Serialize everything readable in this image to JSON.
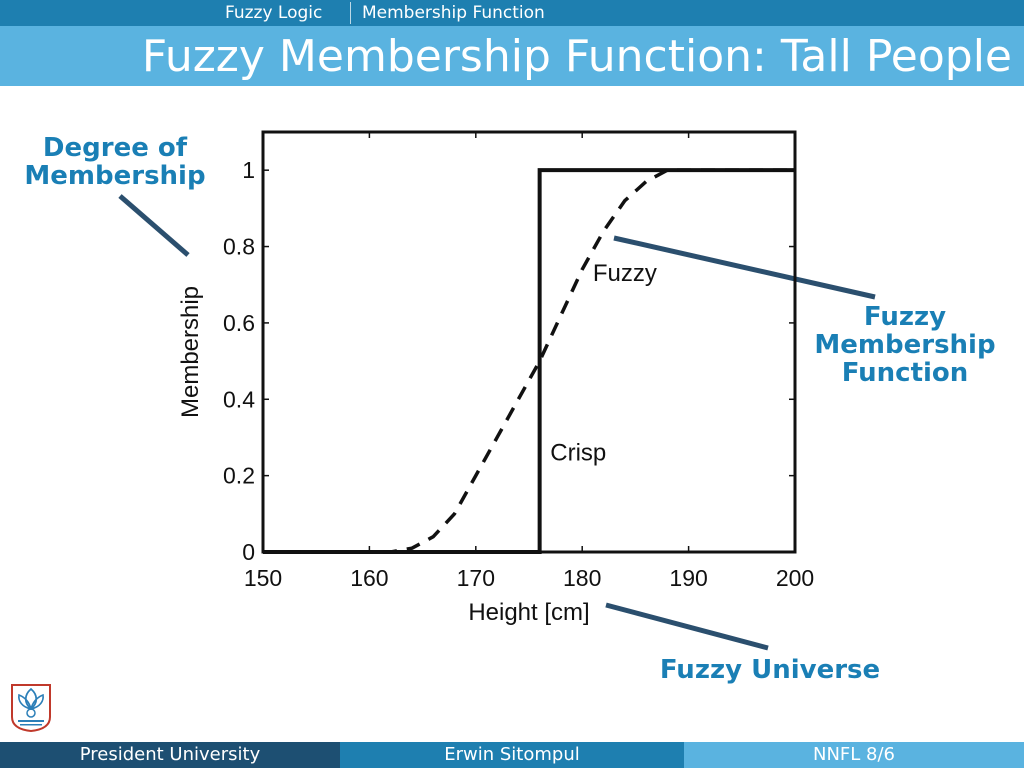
{
  "header": {
    "breadcrumb_section": "Fuzzy Logic",
    "breadcrumb_topic": "Membership Function"
  },
  "slide": {
    "title": "Fuzzy Membership Function: Tall People"
  },
  "callouts": {
    "degree_line1": "Degree of",
    "degree_line2": "Membership",
    "fmf_line1": "Fuzzy",
    "fmf_line2": "Membership",
    "fmf_line3": "Function",
    "universe": "Fuzzy Universe"
  },
  "footer": {
    "left": "President University",
    "center": "Erwin Sitompul",
    "right": "NNFL 8/6"
  },
  "colors": {
    "nav_bar": "#1e7fb0",
    "title_band": "#5ab3e0",
    "callout_text": "#1a7fb5",
    "pointer_line": "#2b4f6e",
    "footer_dark": "#1d4f72",
    "footer_mid": "#1e7fb0",
    "footer_light": "#5ab3e0"
  },
  "chart_data": {
    "type": "line",
    "xlabel": "Height [cm]",
    "ylabel": "Membership",
    "xlim": [
      150,
      200
    ],
    "ylim": [
      0,
      1.1
    ],
    "xticks": [
      150,
      160,
      170,
      180,
      190,
      200
    ],
    "xtick_labels": [
      "150",
      "160",
      "170",
      "180",
      "190",
      "200"
    ],
    "yticks": [
      0,
      0.2,
      0.4,
      0.6,
      0.8,
      1
    ],
    "ytick_labels": [
      "0",
      "0.2",
      "0.4",
      "0.6",
      "0.8",
      "1"
    ],
    "grid": false,
    "series": [
      {
        "name": "Crisp",
        "style": "solid",
        "x": [
          150,
          176,
          176,
          200
        ],
        "y": [
          0,
          0,
          1,
          1
        ]
      },
      {
        "name": "Fuzzy",
        "style": "dashed",
        "x": [
          150,
          162,
          164,
          166,
          168,
          170,
          172,
          174,
          176,
          178,
          180,
          182,
          184,
          186,
          188,
          190,
          200
        ],
        "y": [
          0,
          0,
          0.01,
          0.04,
          0.1,
          0.2,
          0.3,
          0.4,
          0.5,
          0.62,
          0.74,
          0.84,
          0.92,
          0.97,
          1,
          1,
          1
        ]
      }
    ],
    "annotations": [
      {
        "text": "Fuzzy",
        "x": 181,
        "y": 0.71
      },
      {
        "text": "Crisp",
        "x": 177,
        "y": 0.24
      }
    ]
  }
}
